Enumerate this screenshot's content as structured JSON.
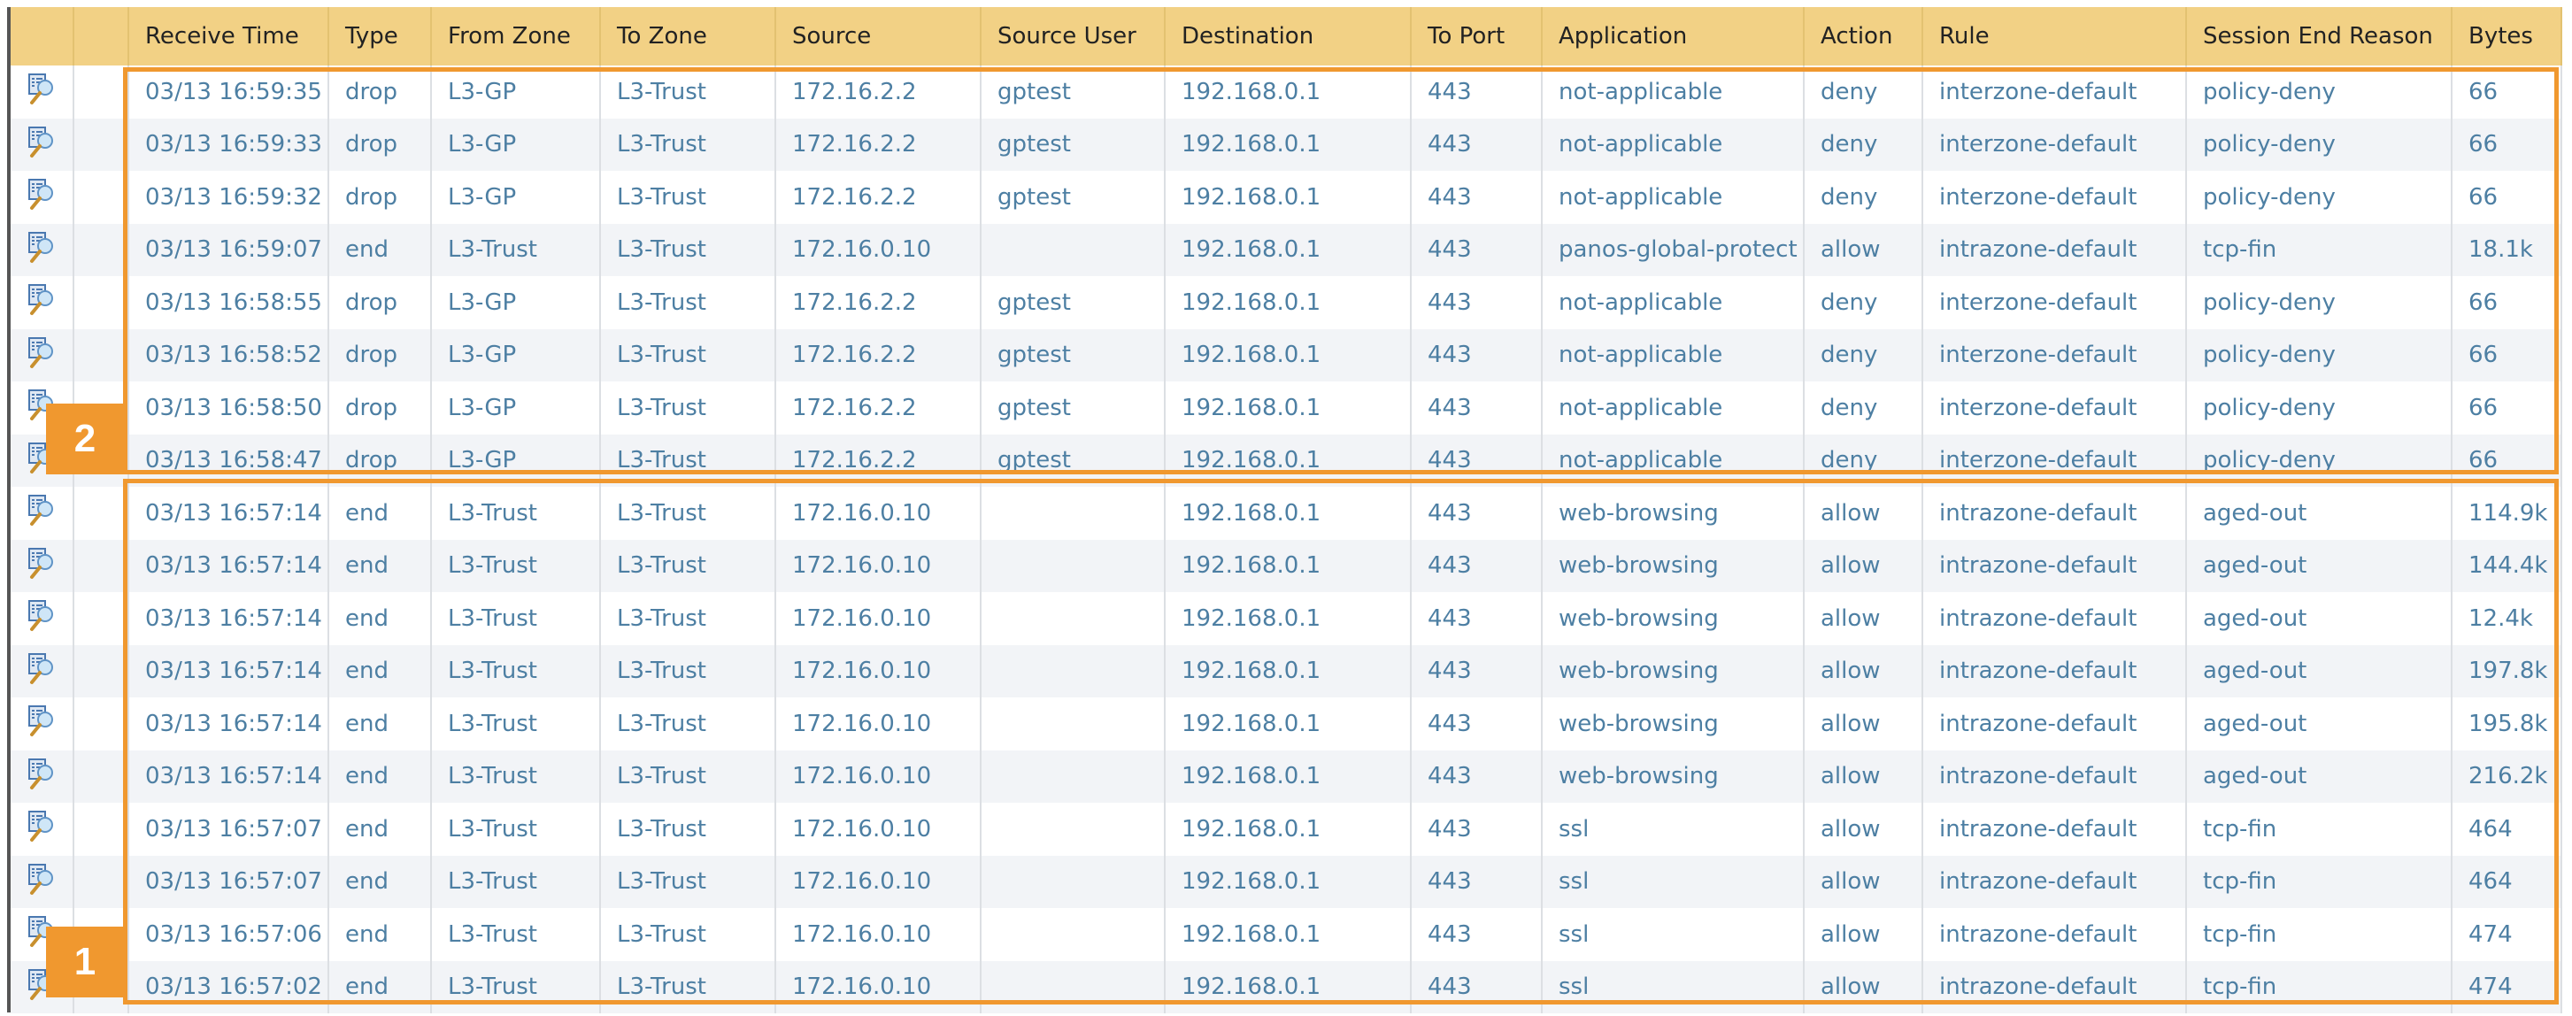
{
  "columns": [
    "",
    "",
    "Receive Time",
    "Type",
    "From Zone",
    "To Zone",
    "Source",
    "Source User",
    "Destination",
    "To Port",
    "Application",
    "Action",
    "Rule",
    "Session End Reason",
    "Bytes"
  ],
  "rows": [
    [
      "03/13 16:59:35",
      "drop",
      "L3-GP",
      "L3-Trust",
      "172.16.2.2",
      "gptest",
      "192.168.0.1",
      "443",
      "not-applicable",
      "deny",
      "interzone-default",
      "policy-deny",
      "66"
    ],
    [
      "03/13 16:59:33",
      "drop",
      "L3-GP",
      "L3-Trust",
      "172.16.2.2",
      "gptest",
      "192.168.0.1",
      "443",
      "not-applicable",
      "deny",
      "interzone-default",
      "policy-deny",
      "66"
    ],
    [
      "03/13 16:59:32",
      "drop",
      "L3-GP",
      "L3-Trust",
      "172.16.2.2",
      "gptest",
      "192.168.0.1",
      "443",
      "not-applicable",
      "deny",
      "interzone-default",
      "policy-deny",
      "66"
    ],
    [
      "03/13 16:59:07",
      "end",
      "L3-Trust",
      "L3-Trust",
      "172.16.0.10",
      "",
      "192.168.0.1",
      "443",
      "panos-global-protect",
      "allow",
      "intrazone-default",
      "tcp-fin",
      "18.1k"
    ],
    [
      "03/13 16:58:55",
      "drop",
      "L3-GP",
      "L3-Trust",
      "172.16.2.2",
      "gptest",
      "192.168.0.1",
      "443",
      "not-applicable",
      "deny",
      "interzone-default",
      "policy-deny",
      "66"
    ],
    [
      "03/13 16:58:52",
      "drop",
      "L3-GP",
      "L3-Trust",
      "172.16.2.2",
      "gptest",
      "192.168.0.1",
      "443",
      "not-applicable",
      "deny",
      "interzone-default",
      "policy-deny",
      "66"
    ],
    [
      "03/13 16:58:50",
      "drop",
      "L3-GP",
      "L3-Trust",
      "172.16.2.2",
      "gptest",
      "192.168.0.1",
      "443",
      "not-applicable",
      "deny",
      "interzone-default",
      "policy-deny",
      "66"
    ],
    [
      "03/13 16:58:47",
      "drop",
      "L3-GP",
      "L3-Trust",
      "172.16.2.2",
      "gptest",
      "192.168.0.1",
      "443",
      "not-applicable",
      "deny",
      "interzone-default",
      "policy-deny",
      "66"
    ],
    [
      "03/13 16:57:14",
      "end",
      "L3-Trust",
      "L3-Trust",
      "172.16.0.10",
      "",
      "192.168.0.1",
      "443",
      "web-browsing",
      "allow",
      "intrazone-default",
      "aged-out",
      "114.9k"
    ],
    [
      "03/13 16:57:14",
      "end",
      "L3-Trust",
      "L3-Trust",
      "172.16.0.10",
      "",
      "192.168.0.1",
      "443",
      "web-browsing",
      "allow",
      "intrazone-default",
      "aged-out",
      "144.4k"
    ],
    [
      "03/13 16:57:14",
      "end",
      "L3-Trust",
      "L3-Trust",
      "172.16.0.10",
      "",
      "192.168.0.1",
      "443",
      "web-browsing",
      "allow",
      "intrazone-default",
      "aged-out",
      "12.4k"
    ],
    [
      "03/13 16:57:14",
      "end",
      "L3-Trust",
      "L3-Trust",
      "172.16.0.10",
      "",
      "192.168.0.1",
      "443",
      "web-browsing",
      "allow",
      "intrazone-default",
      "aged-out",
      "197.8k"
    ],
    [
      "03/13 16:57:14",
      "end",
      "L3-Trust",
      "L3-Trust",
      "172.16.0.10",
      "",
      "192.168.0.1",
      "443",
      "web-browsing",
      "allow",
      "intrazone-default",
      "aged-out",
      "195.8k"
    ],
    [
      "03/13 16:57:14",
      "end",
      "L3-Trust",
      "L3-Trust",
      "172.16.0.10",
      "",
      "192.168.0.1",
      "443",
      "web-browsing",
      "allow",
      "intrazone-default",
      "aged-out",
      "216.2k"
    ],
    [
      "03/13 16:57:07",
      "end",
      "L3-Trust",
      "L3-Trust",
      "172.16.0.10",
      "",
      "192.168.0.1",
      "443",
      "ssl",
      "allow",
      "intrazone-default",
      "tcp-fin",
      "464"
    ],
    [
      "03/13 16:57:07",
      "end",
      "L3-Trust",
      "L3-Trust",
      "172.16.0.10",
      "",
      "192.168.0.1",
      "443",
      "ssl",
      "allow",
      "intrazone-default",
      "tcp-fin",
      "464"
    ],
    [
      "03/13 16:57:06",
      "end",
      "L3-Trust",
      "L3-Trust",
      "172.16.0.10",
      "",
      "192.168.0.1",
      "443",
      "ssl",
      "allow",
      "intrazone-default",
      "tcp-fin",
      "474"
    ],
    [
      "03/13 16:57:02",
      "end",
      "L3-Trust",
      "L3-Trust",
      "172.16.0.10",
      "",
      "192.168.0.1",
      "443",
      "ssl",
      "allow",
      "intrazone-default",
      "tcp-fin",
      "474"
    ]
  ],
  "row_icon": "log-detail-magnifier-icon",
  "annotations": [
    {
      "label": "2"
    },
    {
      "label": "1"
    }
  ],
  "colors": {
    "header": "#f2d185",
    "link": "#4d7fa3",
    "highlight": "#f0982f",
    "alt_row": "#f2f4f7"
  }
}
